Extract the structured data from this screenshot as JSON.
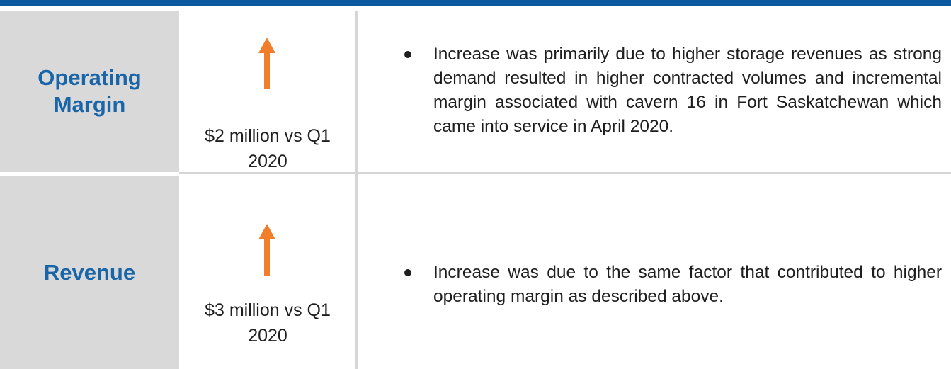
{
  "rows": [
    {
      "label": "Operating Margin",
      "change": "$2 million vs Q1 2020",
      "text": "Increase was primarily due to higher storage revenues as strong demand resulted in higher contracted volumes and incremental margin associated with cavern 16 in Fort Saskatchewan which came into service in April 2020."
    },
    {
      "label": "Revenue",
      "change": "$3 million vs Q1 2020",
      "text": "Increase was due to the same factor that contributed to higher operating margin as described above."
    }
  ]
}
